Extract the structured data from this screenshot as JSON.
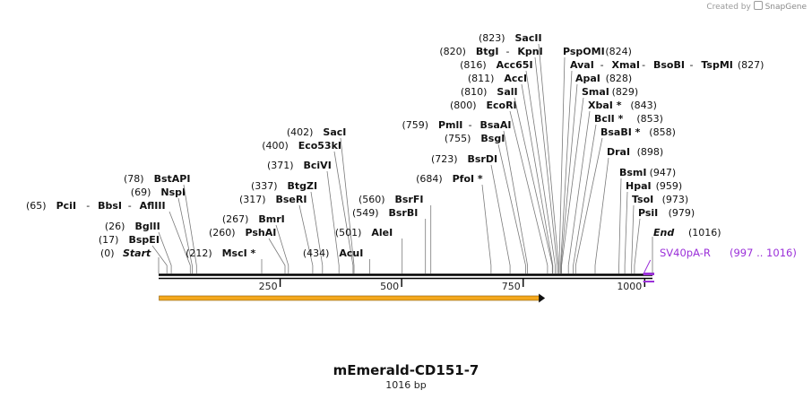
{
  "credit": {
    "prefix": "Created by",
    "brand": "SnapGene"
  },
  "title": "mEmerald-CD151-7",
  "subtitle": "1016 bp",
  "sequence": {
    "length": 1016
  },
  "ruler": {
    "ticks": [
      250,
      500,
      750,
      1000
    ]
  },
  "ends": {
    "start": {
      "label": "Start",
      "pos": 0
    },
    "end": {
      "label": "End",
      "pos": 1016
    }
  },
  "features": [
    {
      "name": "SV40pA-R",
      "range": "(997 .. 1016)",
      "start": 997,
      "end": 1016,
      "color": "#9b30d9"
    }
  ],
  "orf": {
    "start": 1,
    "end": 795,
    "color": "#f4a81d",
    "edge": "#8a5a00"
  },
  "sites": [
    {
      "pos": 17,
      "lines": [
        {
          "segs": [
            {
              "t": "(17)"
            },
            {
              "t": "BspEI",
              "b": true
            }
          ]
        }
      ]
    },
    {
      "pos": 26,
      "lines": [
        {
          "segs": [
            {
              "t": "(26)"
            },
            {
              "t": "BglII",
              "b": true
            }
          ]
        }
      ]
    },
    {
      "pos": 65,
      "lines": [
        {
          "segs": [
            {
              "t": "(65)"
            },
            {
              "t": "PciI",
              "b": true
            },
            {
              "t": "-"
            },
            {
              "t": "BbsI",
              "b": true
            },
            {
              "t": "-"
            },
            {
              "t": "AflIII",
              "b": true
            }
          ]
        }
      ]
    },
    {
      "pos": 69,
      "lines": [
        {
          "segs": [
            {
              "t": "(69)"
            },
            {
              "t": "NspI",
              "b": true
            }
          ]
        }
      ]
    },
    {
      "pos": 78,
      "lines": [
        {
          "segs": [
            {
              "t": "(78)"
            },
            {
              "t": "BstAPI",
              "b": true
            }
          ]
        }
      ]
    },
    {
      "pos": 212,
      "lines": [
        {
          "segs": [
            {
              "t": "(212)"
            },
            {
              "t": "MscI *",
              "b": true
            }
          ]
        }
      ]
    },
    {
      "pos": 260,
      "lines": [
        {
          "segs": [
            {
              "t": "(260)"
            },
            {
              "t": "PshAI",
              "b": true
            }
          ]
        }
      ]
    },
    {
      "pos": 267,
      "lines": [
        {
          "segs": [
            {
              "t": "(267)"
            },
            {
              "t": "BmrI",
              "b": true
            }
          ]
        }
      ]
    },
    {
      "pos": 317,
      "lines": [
        {
          "segs": [
            {
              "t": "(317)"
            },
            {
              "t": "BseRI",
              "b": true
            }
          ]
        }
      ]
    },
    {
      "pos": 337,
      "lines": [
        {
          "segs": [
            {
              "t": "(337)"
            },
            {
              "t": "BtgZI",
              "b": true
            }
          ]
        }
      ]
    },
    {
      "pos": 371,
      "lines": [
        {
          "segs": [
            {
              "t": "(371)"
            },
            {
              "t": "BciVI",
              "b": true
            }
          ]
        }
      ]
    },
    {
      "pos": 400,
      "lines": [
        {
          "segs": [
            {
              "t": "(400)"
            },
            {
              "t": "Eco53kI",
              "b": true
            }
          ]
        }
      ]
    },
    {
      "pos": 402,
      "lines": [
        {
          "segs": [
            {
              "t": "(402)"
            },
            {
              "t": "SacI",
              "b": true
            }
          ]
        }
      ]
    },
    {
      "pos": 434,
      "lines": [
        {
          "segs": [
            {
              "t": "(434)"
            },
            {
              "t": "AcuI",
              "b": true
            }
          ]
        }
      ]
    },
    {
      "pos": 501,
      "lines": [
        {
          "segs": [
            {
              "t": "(501)"
            },
            {
              "t": "AleI",
              "b": true
            }
          ]
        }
      ]
    },
    {
      "pos": 549,
      "lines": [
        {
          "segs": [
            {
              "t": "(549)"
            },
            {
              "t": "BsrBI",
              "b": true
            }
          ]
        }
      ]
    },
    {
      "pos": 560,
      "lines": [
        {
          "segs": [
            {
              "t": "(560)"
            },
            {
              "t": "BsrFI",
              "b": true
            }
          ]
        }
      ]
    },
    {
      "pos": 684,
      "lines": [
        {
          "segs": [
            {
              "t": "(684)"
            },
            {
              "t": "PfoI *",
              "b": true
            }
          ]
        }
      ]
    },
    {
      "pos": 723,
      "lines": [
        {
          "segs": [
            {
              "t": "(723)"
            },
            {
              "t": "BsrDI",
              "b": true
            }
          ]
        }
      ]
    },
    {
      "pos": 755,
      "lines": [
        {
          "segs": [
            {
              "t": "(755)"
            },
            {
              "t": "BsgI",
              "b": true
            }
          ]
        }
      ]
    },
    {
      "pos": 759,
      "lines": [
        {
          "segs": [
            {
              "t": "(759)"
            },
            {
              "t": "PmlI",
              "b": true
            },
            {
              "t": "-"
            },
            {
              "t": "BsaAI",
              "b": true
            }
          ]
        }
      ]
    },
    {
      "pos": 800,
      "lines": [
        {
          "segs": [
            {
              "t": "(800)"
            },
            {
              "t": "EcoRI",
              "b": true
            }
          ]
        }
      ]
    },
    {
      "pos": 810,
      "lines": [
        {
          "segs": [
            {
              "t": "(810)"
            },
            {
              "t": "SalI",
              "b": true
            }
          ]
        }
      ]
    },
    {
      "pos": 811,
      "lines": [
        {
          "segs": [
            {
              "t": "(811)"
            },
            {
              "t": "AccI",
              "b": true
            }
          ]
        }
      ]
    },
    {
      "pos": 816,
      "lines": [
        {
          "segs": [
            {
              "t": "(816)"
            },
            {
              "t": "Acc65I",
              "b": true
            }
          ]
        }
      ]
    },
    {
      "pos": 820,
      "lines": [
        {
          "segs": [
            {
              "t": "(820)"
            },
            {
              "t": "BtgI",
              "b": true
            },
            {
              "t": "-"
            },
            {
              "t": "KpnI",
              "b": true
            }
          ]
        }
      ]
    },
    {
      "pos": 823,
      "lines": [
        {
          "segs": [
            {
              "t": "(823)"
            },
            {
              "t": "SacII",
              "b": true
            }
          ]
        }
      ]
    },
    {
      "pos": 824,
      "lines": [
        {
          "segs": [
            {
              "t": "PspOMI",
              "b": true
            },
            {
              "t": "(824)"
            }
          ]
        }
      ]
    },
    {
      "pos": 827,
      "lines": [
        {
          "segs": [
            {
              "t": "AvaI",
              "b": true
            },
            {
              "t": "-"
            },
            {
              "t": "XmaI",
              "b": true
            },
            {
              "t": "-"
            },
            {
              "t": "BsoBI",
              "b": true
            },
            {
              "t": "-"
            },
            {
              "t": "TspMI",
              "b": true
            },
            {
              "t": "(827)"
            }
          ]
        }
      ]
    },
    {
      "pos": 828,
      "lines": [
        {
          "segs": [
            {
              "t": "ApaI",
              "b": true
            },
            {
              "t": "(828)"
            }
          ]
        }
      ]
    },
    {
      "pos": 829,
      "lines": [
        {
          "segs": [
            {
              "t": "SmaI",
              "b": true
            },
            {
              "t": "(829)"
            }
          ]
        }
      ]
    },
    {
      "pos": 843,
      "lines": [
        {
          "segs": [
            {
              "t": "XbaI *",
              "b": true
            },
            {
              "t": "(843)"
            }
          ]
        }
      ]
    },
    {
      "pos": 853,
      "lines": [
        {
          "segs": [
            {
              "t": "BclI *",
              "b": true
            },
            {
              "t": "(853)"
            }
          ]
        }
      ]
    },
    {
      "pos": 858,
      "lines": [
        {
          "segs": [
            {
              "t": "BsaBI *",
              "b": true
            },
            {
              "t": "(858)"
            }
          ]
        }
      ]
    },
    {
      "pos": 898,
      "lines": [
        {
          "segs": [
            {
              "t": "DraI",
              "b": true
            },
            {
              "t": "(898)"
            }
          ]
        }
      ]
    },
    {
      "pos": 947,
      "lines": [
        {
          "segs": [
            {
              "t": "BsmI",
              "b": true
            },
            {
              "t": "(947)"
            }
          ]
        }
      ]
    },
    {
      "pos": 959,
      "lines": [
        {
          "segs": [
            {
              "t": "HpaI",
              "b": true
            },
            {
              "t": "(959)"
            }
          ]
        }
      ]
    },
    {
      "pos": 973,
      "lines": [
        {
          "segs": [
            {
              "t": "TsoI",
              "b": true
            },
            {
              "t": "(973)"
            }
          ]
        }
      ]
    },
    {
      "pos": 979,
      "lines": [
        {
          "segs": [
            {
              "t": "PsiI",
              "b": true
            },
            {
              "t": "(979)"
            }
          ]
        }
      ]
    }
  ]
}
